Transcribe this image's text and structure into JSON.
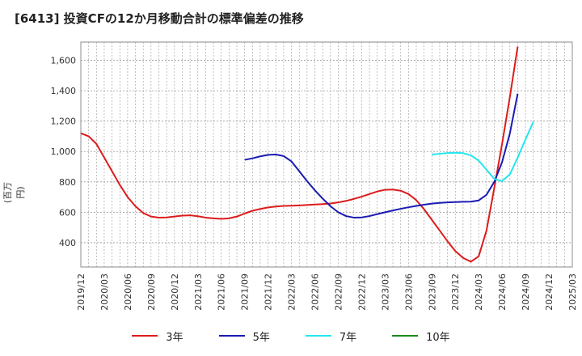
{
  "title": "[6413]  投資CFの12か月移動合計の標準偏差の推移",
  "chart_data": {
    "type": "line",
    "title": "[6413]  投資CFの12か月移動合計の標準偏差の推移",
    "ylabel": "(百万円)",
    "xlabel": "",
    "ylim": [
      240,
      1720
    ],
    "yticks": [
      400,
      600,
      800,
      1000,
      1200,
      1400,
      1600
    ],
    "ytick_labels": [
      "400",
      "600",
      "800",
      "1,000",
      "1,200",
      "1,400",
      "1,600"
    ],
    "x_ticks": [
      "2019/12",
      "2020/03",
      "2020/06",
      "2020/09",
      "2020/12",
      "2021/03",
      "2021/06",
      "2021/09",
      "2021/12",
      "2022/03",
      "2022/06",
      "2022/09",
      "2022/12",
      "2023/03",
      "2023/06",
      "2023/09",
      "2023/12",
      "2024/03",
      "2024/06",
      "2024/09",
      "2024/12",
      "2025/03"
    ],
    "grid": true,
    "legend_position": "bottom",
    "series": [
      {
        "name": "3年",
        "color": "#dd1c1c",
        "points": [
          [
            "2019/12",
            1120
          ],
          [
            "2020/01",
            1100
          ],
          [
            "2020/02",
            1050
          ],
          [
            "2020/03",
            960
          ],
          [
            "2020/04",
            870
          ],
          [
            "2020/05",
            780
          ],
          [
            "2020/06",
            700
          ],
          [
            "2020/07",
            640
          ],
          [
            "2020/08",
            595
          ],
          [
            "2020/09",
            572
          ],
          [
            "2020/10",
            565
          ],
          [
            "2020/11",
            566
          ],
          [
            "2020/12",
            572
          ],
          [
            "2021/01",
            578
          ],
          [
            "2021/02",
            580
          ],
          [
            "2021/03",
            574
          ],
          [
            "2021/04",
            565
          ],
          [
            "2021/05",
            560
          ],
          [
            "2021/06",
            557
          ],
          [
            "2021/07",
            560
          ],
          [
            "2021/08",
            572
          ],
          [
            "2021/09",
            592
          ],
          [
            "2021/10",
            610
          ],
          [
            "2021/11",
            622
          ],
          [
            "2021/12",
            632
          ],
          [
            "2022/01",
            638
          ],
          [
            "2022/02",
            642
          ],
          [
            "2022/03",
            643
          ],
          [
            "2022/04",
            645
          ],
          [
            "2022/05",
            648
          ],
          [
            "2022/06",
            651
          ],
          [
            "2022/07",
            654
          ],
          [
            "2022/08",
            658
          ],
          [
            "2022/09",
            665
          ],
          [
            "2022/10",
            675
          ],
          [
            "2022/11",
            688
          ],
          [
            "2022/12",
            703
          ],
          [
            "2023/01",
            720
          ],
          [
            "2023/02",
            737
          ],
          [
            "2023/03",
            748
          ],
          [
            "2023/04",
            750
          ],
          [
            "2023/05",
            742
          ],
          [
            "2023/06",
            720
          ],
          [
            "2023/07",
            680
          ],
          [
            "2023/08",
            620
          ],
          [
            "2023/09",
            550
          ],
          [
            "2023/10",
            480
          ],
          [
            "2023/11",
            410
          ],
          [
            "2023/12",
            345
          ],
          [
            "2024/01",
            300
          ],
          [
            "2024/02",
            275
          ],
          [
            "2024/03",
            310
          ],
          [
            "2024/04",
            480
          ],
          [
            "2024/05",
            760
          ],
          [
            "2024/06",
            1050
          ],
          [
            "2024/07",
            1360
          ],
          [
            "2024/08",
            1690
          ]
        ]
      },
      {
        "name": "5年",
        "color": "#1a1ab4",
        "points": [
          [
            "2021/09",
            945
          ],
          [
            "2021/10",
            955
          ],
          [
            "2021/11",
            968
          ],
          [
            "2021/12",
            978
          ],
          [
            "2022/01",
            980
          ],
          [
            "2022/02",
            970
          ],
          [
            "2022/03",
            935
          ],
          [
            "2022/04",
            870
          ],
          [
            "2022/05",
            805
          ],
          [
            "2022/06",
            745
          ],
          [
            "2022/07",
            690
          ],
          [
            "2022/08",
            640
          ],
          [
            "2022/09",
            600
          ],
          [
            "2022/10",
            575
          ],
          [
            "2022/11",
            565
          ],
          [
            "2022/12",
            566
          ],
          [
            "2023/01",
            575
          ],
          [
            "2023/02",
            588
          ],
          [
            "2023/03",
            600
          ],
          [
            "2023/04",
            612
          ],
          [
            "2023/05",
            623
          ],
          [
            "2023/06",
            633
          ],
          [
            "2023/07",
            642
          ],
          [
            "2023/08",
            650
          ],
          [
            "2023/09",
            657
          ],
          [
            "2023/10",
            662
          ],
          [
            "2023/11",
            665
          ],
          [
            "2023/12",
            667
          ],
          [
            "2024/01",
            669
          ],
          [
            "2024/02",
            670
          ],
          [
            "2024/03",
            678
          ],
          [
            "2024/04",
            715
          ],
          [
            "2024/05",
            800
          ],
          [
            "2024/06",
            930
          ],
          [
            "2024/07",
            1120
          ],
          [
            "2024/08",
            1380
          ]
        ]
      },
      {
        "name": "7年",
        "color": "#22e6ee",
        "points": [
          [
            "2023/09",
            980
          ],
          [
            "2023/10",
            985
          ],
          [
            "2023/11",
            990
          ],
          [
            "2023/12",
            992
          ],
          [
            "2024/01",
            989
          ],
          [
            "2024/02",
            975
          ],
          [
            "2024/03",
            940
          ],
          [
            "2024/04",
            880
          ],
          [
            "2024/05",
            820
          ],
          [
            "2024/06",
            805
          ],
          [
            "2024/07",
            850
          ],
          [
            "2024/08",
            960
          ],
          [
            "2024/09",
            1080
          ],
          [
            "2024/10",
            1195
          ]
        ]
      },
      {
        "name": "10年",
        "color": "#1a8a1a",
        "points": []
      }
    ]
  }
}
